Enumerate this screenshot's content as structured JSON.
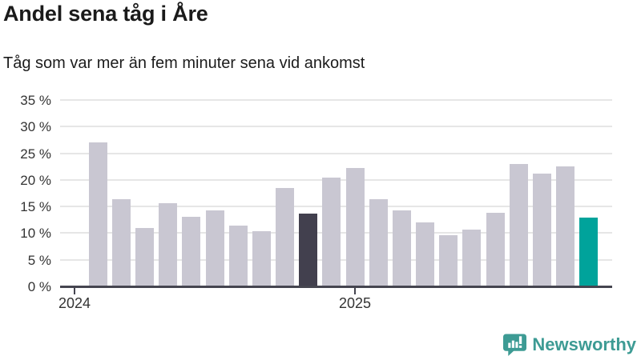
{
  "header": {
    "title": "Andel sena tåg i Åre",
    "subtitle": "Tåg som var mer än fem minuter sena vid ankomst"
  },
  "chart_data": {
    "type": "bar",
    "title": "Andel sena tåg i Åre",
    "subtitle": "Tåg som var mer än fem minuter sena vid ankomst",
    "unit": "%",
    "categories": [
      "2024-02",
      "2024-03",
      "2024-04",
      "2024-05",
      "2024-06",
      "2024-07",
      "2024-08",
      "2024-09",
      "2024-10",
      "2024-11",
      "2024-12",
      "2025-01",
      "2025-02",
      "2025-03",
      "2025-04",
      "2025-05",
      "2025-06",
      "2025-07",
      "2025-08",
      "2025-09",
      "2025-10",
      "2025-11"
    ],
    "values": [
      27.0,
      16.4,
      10.9,
      15.6,
      13.1,
      14.3,
      11.4,
      10.3,
      18.5,
      13.7,
      20.4,
      22.2,
      16.4,
      14.3,
      12.0,
      9.6,
      10.7,
      13.8,
      23.0,
      21.2,
      22.6,
      12.9
    ],
    "highlight_previous_year_index": 9,
    "highlight_latest_index": 21,
    "colors": {
      "bar_default": "#c9c7d2",
      "bar_highlight_previous_year": "#42404e",
      "bar_highlight_latest": "#00a39b",
      "axis": "#454550",
      "gridline": "#e6e6e6",
      "text": "#333333"
    },
    "ylim": [
      0,
      35
    ],
    "y_tick_step": 5,
    "y_tick_labels": [
      "0 %",
      "5 %",
      "10 %",
      "15 %",
      "20 %",
      "25 %",
      "30 %",
      "35 %"
    ],
    "x_tick_labels": [
      "2024",
      "2025"
    ],
    "grid": true,
    "legend": false
  },
  "footer": {
    "brand": "Newsworthy",
    "brand_color": "#3d9b94",
    "logo_icon": "newsworthy-speech-bubble-chart-icon"
  }
}
